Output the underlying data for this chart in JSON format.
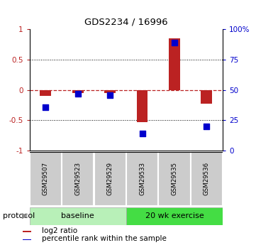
{
  "title": "GDS2234 / 16996",
  "samples": [
    "GSM29507",
    "GSM29523",
    "GSM29529",
    "GSM29533",
    "GSM29535",
    "GSM29536"
  ],
  "log2_ratio": [
    -0.1,
    -0.05,
    -0.05,
    -0.53,
    0.85,
    -0.22
  ],
  "percentile_rank": [
    36,
    47,
    46,
    14,
    89,
    20
  ],
  "ylim": [
    -1,
    1
  ],
  "right_ylim": [
    0,
    100
  ],
  "bar_color": "#bb2222",
  "dot_color": "#0000cc",
  "baseline_label": "baseline",
  "exercise_label": "20 wk exercise",
  "protocol_label": "protocol",
  "legend_red_label": "log2 ratio",
  "legend_blue_label": "percentile rank within the sample",
  "baseline_color": "#b8f0b8",
  "exercise_color": "#44dd44",
  "sample_box_color": "#cccccc",
  "ytick_labels_right": [
    "0",
    "25",
    "50",
    "75",
    "100%"
  ]
}
